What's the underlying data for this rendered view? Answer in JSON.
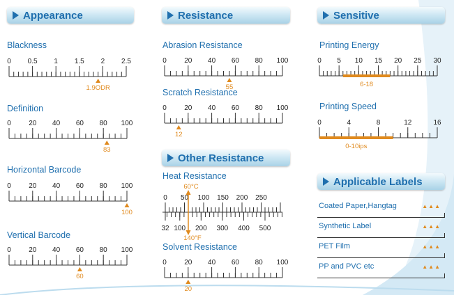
{
  "sections": {
    "appearance": "Appearance",
    "resistance": "Resistance",
    "sensitive": "Sensitive",
    "other_resistance": "Other Resistance",
    "applicable_labels": "Applicable Labels"
  },
  "colors": {
    "accent": "#1f6fae",
    "marker": "#e08a1e",
    "line": "#333333"
  },
  "scales": {
    "blackness": {
      "title": "Blackness",
      "min": 0,
      "max": 2.5,
      "ticks": [
        "0",
        "0.5",
        "1",
        "1.5",
        "2",
        "2.5"
      ],
      "tick_values": [
        0,
        0.5,
        1,
        1.5,
        2,
        2.5
      ],
      "minor": 25,
      "marker_value": 1.9,
      "marker_label": "1.9ODR"
    },
    "definition": {
      "title": "Definition",
      "min": 0,
      "max": 100,
      "ticks": [
        "0",
        "20",
        "40",
        "60",
        "80",
        "100"
      ],
      "tick_values": [
        0,
        20,
        40,
        60,
        80,
        100
      ],
      "minor": 20,
      "marker_value": 83,
      "marker_label": "83"
    },
    "horizontal_barcode": {
      "title": "Horizontal Barcode",
      "min": 0,
      "max": 100,
      "ticks": [
        "0",
        "20",
        "40",
        "60",
        "80",
        "100"
      ],
      "tick_values": [
        0,
        20,
        40,
        60,
        80,
        100
      ],
      "minor": 20,
      "marker_value": 100,
      "marker_label": "100"
    },
    "vertical_barcode": {
      "title": "Vertical Barcode",
      "min": 0,
      "max": 100,
      "ticks": [
        "0",
        "20",
        "40",
        "60",
        "80",
        "100"
      ],
      "tick_values": [
        0,
        20,
        40,
        60,
        80,
        100
      ],
      "minor": 20,
      "marker_value": 60,
      "marker_label": "60"
    },
    "abrasion_resistance": {
      "title": "Abrasion Resistance",
      "min": 0,
      "max": 100,
      "ticks": [
        "0",
        "20",
        "40",
        "60",
        "80",
        "100"
      ],
      "tick_values": [
        0,
        20,
        40,
        60,
        80,
        100
      ],
      "minor": 20,
      "marker_value": 55,
      "marker_label": "55"
    },
    "scratch_resistance": {
      "title": "Scratch Resistance",
      "min": 0,
      "max": 100,
      "ticks": [
        "0",
        "20",
        "40",
        "60",
        "80",
        "100"
      ],
      "tick_values": [
        0,
        20,
        40,
        60,
        80,
        100
      ],
      "minor": 20,
      "marker_value": 12,
      "marker_label": "12"
    },
    "printing_energy": {
      "title": "Printing Energy",
      "min": 0,
      "max": 30,
      "ticks": [
        "0",
        "5",
        "10",
        "15",
        "20",
        "25",
        "30"
      ],
      "tick_values": [
        0,
        5,
        10,
        15,
        20,
        25,
        30
      ],
      "minor": 30,
      "range": [
        6,
        18
      ],
      "range_label": "6-18"
    },
    "printing_speed": {
      "title": "Printing Speed",
      "min": 0,
      "max": 16,
      "ticks": [
        "0",
        "4",
        "8",
        "12",
        "16"
      ],
      "tick_values": [
        0,
        4,
        8,
        12,
        16
      ],
      "minor": 16,
      "range": [
        0,
        10
      ],
      "range_label": "0-10ips"
    },
    "solvent_resistance": {
      "title": "Solvent Resistance",
      "min": 0,
      "max": 100,
      "ticks": [
        "0",
        "20",
        "40",
        "60",
        "80",
        "100"
      ],
      "tick_values": [
        0,
        20,
        40,
        60,
        80,
        100
      ],
      "minor": 20,
      "marker_value": 20,
      "marker_label": "20"
    },
    "heat_resistance": {
      "title": "Heat Resistance",
      "celsius_ticks": [
        "0",
        "50",
        "100",
        "150",
        "200",
        "250"
      ],
      "celsius_values": [
        0,
        50,
        100,
        150,
        200,
        250
      ],
      "fahrenheit_ticks": [
        "32",
        "100",
        "200",
        "300",
        "400",
        "500"
      ],
      "fahrenheit_values": [
        32,
        100,
        200,
        300,
        400,
        500
      ],
      "marker_c_label": "60°C",
      "marker_f_label": "140°F",
      "marker_c_value": 60
    }
  },
  "applicable_labels": [
    {
      "name": "Coated Paper,Hangtag",
      "rating": "▲▲▲"
    },
    {
      "name": "Synthetic Label",
      "rating": "▲▲▲"
    },
    {
      "name": "PET Film",
      "rating": "▲▲▲"
    },
    {
      "name": "PP and PVC etc",
      "rating": "▲▲▲"
    }
  ]
}
